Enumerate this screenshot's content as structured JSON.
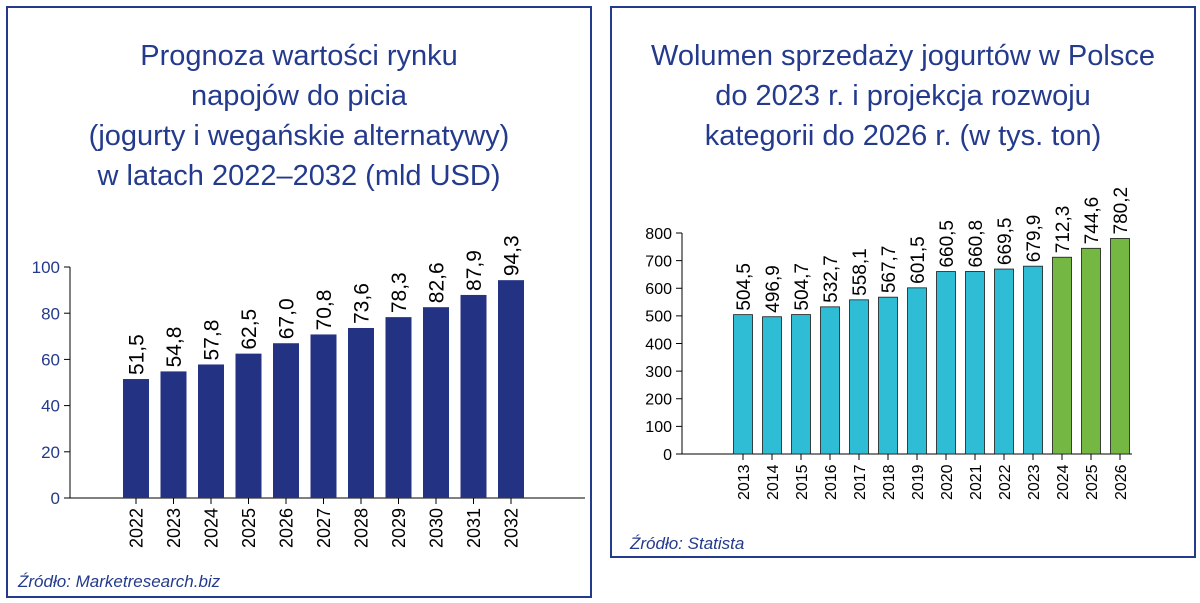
{
  "charts": {
    "left": {
      "title_lines": [
        "Prognoza wartości rynku",
        "napojów do picia",
        "(jogurty i wegańskie alternatywy)",
        "w latach 2022–2032 (mld USD)"
      ],
      "source": "Źródło: Marketresearch.biz"
    },
    "right": {
      "title_lines": [
        "Wolumen sprzedaży jogurtów w Polsce",
        "do 2023 r. i projekcja rozwoju",
        "kategorii do 2026 r. (w tys. ton)"
      ],
      "source": "Źródło: Statista"
    }
  },
  "colors": {
    "accent": "#243a8c",
    "bar_left": "#243283",
    "bar_right_actual": "#2ebdd5",
    "bar_right_projection": "#74b843",
    "axis": "#000000"
  },
  "chart_data": [
    {
      "type": "bar",
      "title": "Prognoza wartości rynku napojów do picia (jogurty i wegańskie alternatywy) w latach 2022–2032 (mld USD)",
      "categories": [
        "2022",
        "2023",
        "2024",
        "2025",
        "2026",
        "2027",
        "2028",
        "2029",
        "2030",
        "2031",
        "2032"
      ],
      "values": [
        51.5,
        54.8,
        57.8,
        62.5,
        67.0,
        70.8,
        73.6,
        78.3,
        82.6,
        87.9,
        94.3
      ],
      "value_labels": [
        "51,5",
        "54,8",
        "57,8",
        "62,5",
        "67,0",
        "70,8",
        "73,6",
        "78,3",
        "82,6",
        "87,9",
        "94,3"
      ],
      "ylim": [
        0,
        100
      ],
      "yticks": [
        0,
        20,
        40,
        60,
        80,
        100
      ],
      "grid": false,
      "source": "Źródło: Marketresearch.biz"
    },
    {
      "type": "bar",
      "title": "Wolumen sprzedaży jogurtów w Polsce do 2023 r. i projekcja rozwoju kategorii do 2026 r. (w tys. ton)",
      "categories": [
        "2013",
        "2014",
        "2015",
        "2016",
        "2017",
        "2018",
        "2019",
        "2020",
        "2021",
        "2022",
        "2023",
        "2024",
        "2025",
        "2026"
      ],
      "values": [
        504.5,
        496.9,
        504.7,
        532.7,
        558.1,
        567.7,
        601.5,
        660.5,
        660.8,
        669.5,
        679.9,
        712.3,
        744.6,
        780.2
      ],
      "value_labels": [
        "504,5",
        "496,9",
        "504,7",
        "532,7",
        "558,1",
        "567,7",
        "601,5",
        "660,5",
        "660,8",
        "669,5",
        "679,9",
        "712,3",
        "744,6",
        "780,2"
      ],
      "projection_from": "2024",
      "ylim": [
        0,
        800
      ],
      "yticks": [
        0,
        100,
        200,
        300,
        400,
        500,
        600,
        700,
        800
      ],
      "grid": false,
      "source": "Źródło: Statista"
    }
  ]
}
